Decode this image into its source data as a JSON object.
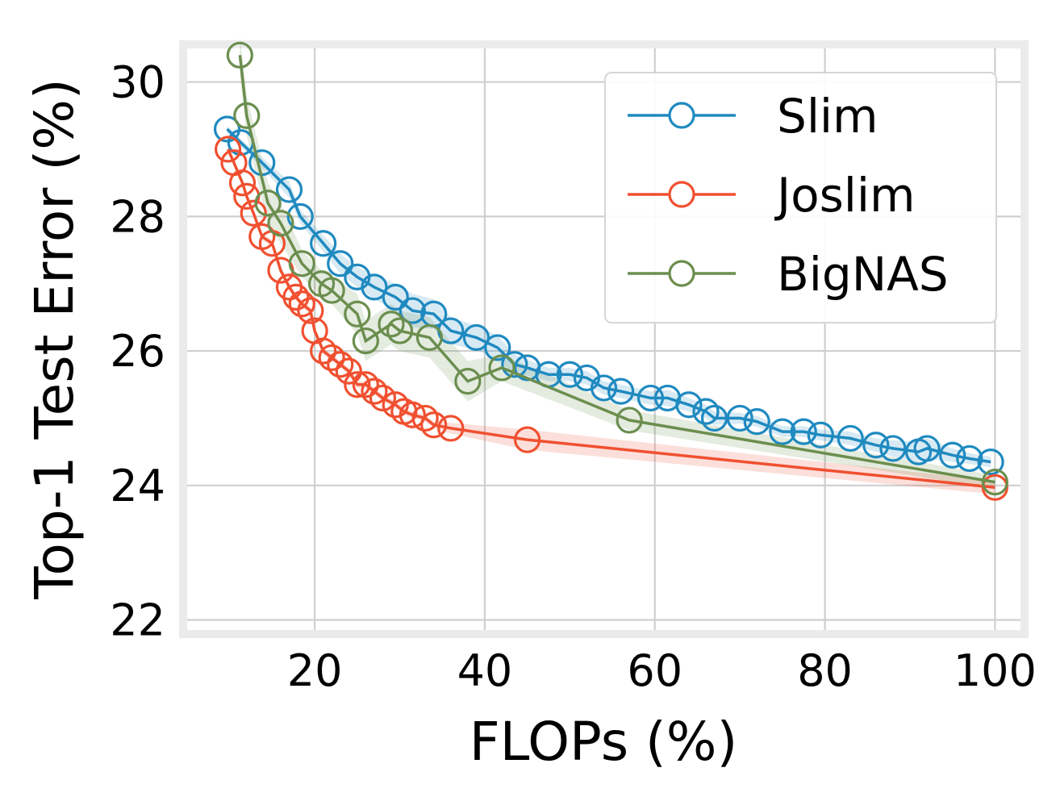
{
  "chart_data": {
    "type": "line",
    "xlabel": "FLOPs (%)",
    "ylabel": "Top-1 Test Error (%)",
    "xlim": [
      5,
      103
    ],
    "ylim": [
      21.85,
      30.5
    ],
    "xticks": [
      20,
      40,
      60,
      80,
      100
    ],
    "yticks": [
      22,
      24,
      26,
      28,
      30
    ],
    "grid": true,
    "legend_position": "top-right",
    "series": [
      {
        "name": "Slim",
        "color": "#1f8ac0",
        "x": [
          9.7,
          11.3,
          13.8,
          17.0,
          18.3,
          21.0,
          23.0,
          25.0,
          27.0,
          29.5,
          31.5,
          34.0,
          36.0,
          39.0,
          41.5,
          43.5,
          45.0,
          47.5,
          50.0,
          52.0,
          54.0,
          56.0,
          59.5,
          61.5,
          64.0,
          66.0,
          67.0,
          70.0,
          72.0,
          75.0,
          77.5,
          79.5,
          83.0,
          86.0,
          88.0,
          91.0,
          92.0,
          95.0,
          97.0,
          99.5
        ],
        "y": [
          29.3,
          29.1,
          28.8,
          28.4,
          28.0,
          27.6,
          27.3,
          27.1,
          26.95,
          26.8,
          26.6,
          26.55,
          26.3,
          26.2,
          26.05,
          25.8,
          25.75,
          25.65,
          25.65,
          25.6,
          25.45,
          25.4,
          25.3,
          25.3,
          25.2,
          25.1,
          25.0,
          25.0,
          24.95,
          24.8,
          24.8,
          24.75,
          24.7,
          24.6,
          24.55,
          24.5,
          24.55,
          24.45,
          24.4,
          24.35
        ],
        "band": [
          0.05,
          0.05,
          0.08,
          0.12,
          0.1,
          0.12,
          0.15,
          0.15,
          0.18,
          0.2,
          0.25,
          0.22,
          0.2,
          0.18,
          0.18,
          0.15,
          0.12,
          0.1,
          0.1,
          0.1,
          0.1,
          0.1,
          0.1,
          0.12,
          0.1,
          0.1,
          0.1,
          0.08,
          0.08,
          0.08,
          0.08,
          0.08,
          0.1,
          0.1,
          0.12,
          0.15,
          0.15,
          0.1,
          0.08,
          0.08
        ]
      },
      {
        "name": "Joslim",
        "color": "#f05030",
        "x": [
          9.8,
          10.5,
          11.5,
          12.0,
          12.8,
          13.8,
          15.0,
          16.0,
          17.0,
          17.8,
          18.5,
          19.5,
          20.0,
          21.0,
          22.0,
          23.0,
          24.0,
          25.0,
          26.0,
          27.0,
          28.0,
          29.5,
          30.5,
          31.5,
          33.0,
          34.0,
          36.0,
          45.0,
          100.0
        ],
        "y": [
          29.0,
          28.8,
          28.5,
          28.3,
          28.05,
          27.7,
          27.6,
          27.2,
          26.95,
          26.8,
          26.7,
          26.6,
          26.3,
          26.0,
          25.9,
          25.8,
          25.7,
          25.5,
          25.5,
          25.4,
          25.3,
          25.2,
          25.1,
          25.05,
          25.0,
          24.9,
          24.85,
          24.68,
          23.97
        ],
        "band": [
          0.05,
          0.05,
          0.05,
          0.05,
          0.05,
          0.05,
          0.05,
          0.05,
          0.05,
          0.05,
          0.05,
          0.05,
          0.05,
          0.05,
          0.05,
          0.05,
          0.05,
          0.05,
          0.05,
          0.05,
          0.05,
          0.05,
          0.05,
          0.05,
          0.05,
          0.05,
          0.08,
          0.15,
          0.1
        ]
      },
      {
        "name": "BigNAS",
        "color": "#6b8e4e",
        "x": [
          11.2,
          12.0,
          14.5,
          16.0,
          18.5,
          20.8,
          22.0,
          25.0,
          26.0,
          29.0,
          30.0,
          33.5,
          38.0,
          42.0,
          57.0,
          100.0
        ],
        "y": [
          30.4,
          29.5,
          28.2,
          27.9,
          27.3,
          27.0,
          26.9,
          26.55,
          26.15,
          26.4,
          26.3,
          26.2,
          25.55,
          25.75,
          24.97,
          24.05
        ],
        "band": [
          0.3,
          0.3,
          0.3,
          0.3,
          0.2,
          0.2,
          0.2,
          0.3,
          0.3,
          0.3,
          0.3,
          0.3,
          0.3,
          0.2,
          0.15,
          0.1
        ]
      }
    ]
  }
}
